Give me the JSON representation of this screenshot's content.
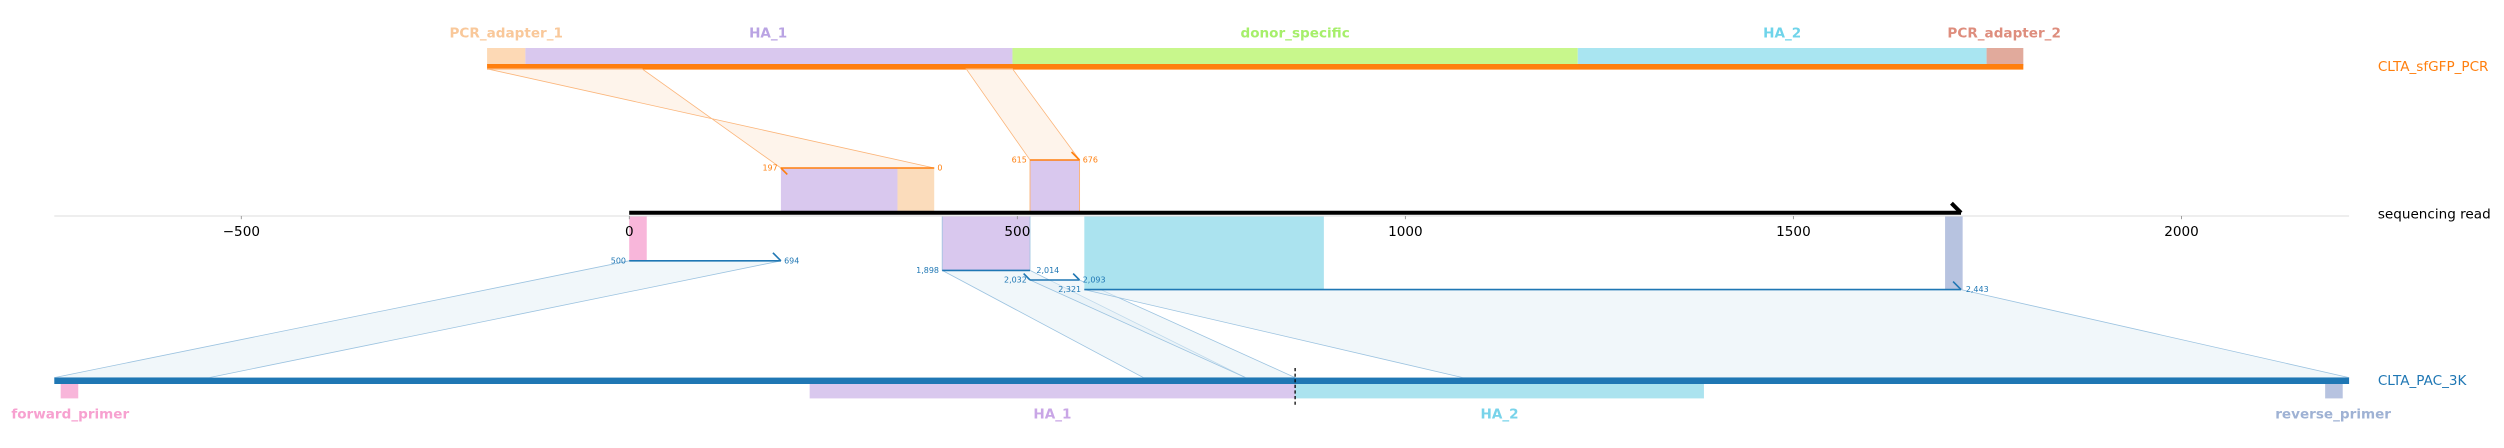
{
  "top_reference": {
    "name": "CLTA_sfGFP_PCR",
    "features": [
      "PCR_adapter_1",
      "HA_1",
      "donor_specific",
      "HA_2",
      "PCR_adapter_2"
    ]
  },
  "read": {
    "name": "sequencing read",
    "xlim": [
      -741,
      2216
    ],
    "ticks": [
      {
        "value": -500,
        "label": "−500"
      },
      0,
      500,
      1000,
      1500,
      2000
    ]
  },
  "top_alignments": [
    {
      "start": 197,
      "end": 0
    },
    {
      "start": 615,
      "end": 676
    }
  ],
  "bottom_alignments": [
    {
      "start": 500,
      "end": 694
    },
    {
      "start": "1,898",
      "end": "2,014"
    },
    {
      "start": "2,032",
      "end": "2,093"
    },
    {
      "start": "2,321",
      "end": "2,443"
    }
  ],
  "bottom_reference": {
    "name": "CLTA_PAC_3K",
    "features": [
      "forward_primer",
      "HA_1",
      "HA_2",
      "reverse_primer"
    ]
  }
}
